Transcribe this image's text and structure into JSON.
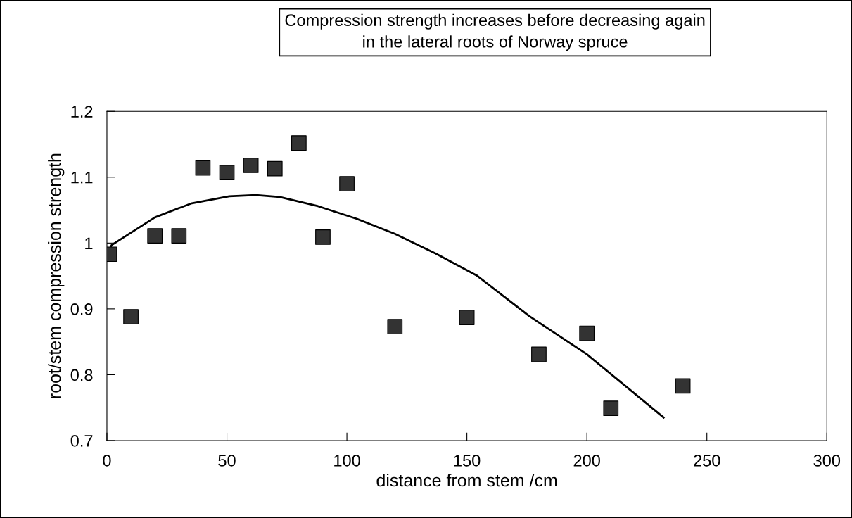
{
  "chart_data": {
    "type": "scatter",
    "title": "Compression strength increases before decreasing again\nin the lateral roots of Norway spruce",
    "xlabel": "distance from stem /cm",
    "ylabel": "root/stem compression strength",
    "xlim": [
      0,
      300
    ],
    "xticks": [
      0,
      50,
      100,
      150,
      200,
      250,
      300
    ],
    "ylim": [
      0.7,
      1.2
    ],
    "yticks": [
      0.7,
      0.8,
      0.9,
      1,
      1.1,
      1.2
    ],
    "grid": false,
    "legend": false,
    "series": [
      {
        "marker": "square",
        "color": "#333333",
        "x": [
          1,
          10,
          20,
          30,
          40,
          50,
          60,
          70,
          80,
          90,
          100,
          120,
          150,
          180,
          200,
          210,
          240
        ],
        "values": [
          0.983,
          0.888,
          1.011,
          1.011,
          1.114,
          1.107,
          1.118,
          1.113,
          1.152,
          1.009,
          1.09,
          0.873,
          0.887,
          0.831,
          0.863,
          0.749,
          0.783
        ]
      },
      {
        "type": "line",
        "marker": "none",
        "line_style": "solid",
        "color": "#000000",
        "x": [
          1,
          2,
          20,
          35,
          51,
          62,
          72,
          88,
          104,
          120,
          137,
          154,
          176,
          200,
          218,
          232
        ],
        "values": [
          0.99,
          0.997,
          1.039,
          1.06,
          1.071,
          1.073,
          1.07,
          1.056,
          1.037,
          1.014,
          0.984,
          0.951,
          0.889,
          0.831,
          0.777,
          0.735
        ]
      }
    ]
  }
}
